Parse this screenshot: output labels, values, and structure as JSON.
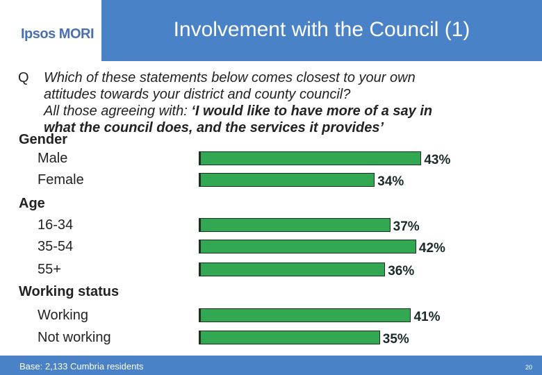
{
  "header": {
    "logo_text": "Ipsos MORI",
    "title": "Involvement with the Council (1)"
  },
  "question": {
    "letter": "Q",
    "line1": "Which of these statements below comes closest to your own",
    "line2": "attitudes towards your district and county council?",
    "line3_prefix": "All those agreeing with: ",
    "line3_bold": "‘I would like to have more of a say in",
    "line4_bold": "what the council does, and the services it provides’"
  },
  "chart_data": {
    "type": "bar",
    "orientation": "horizontal",
    "groups": [
      {
        "label": "Gender",
        "rows": [
          {
            "label": "Male",
            "value": 43,
            "value_label": "43%"
          },
          {
            "label": "Female",
            "value": 34,
            "value_label": "34%"
          }
        ]
      },
      {
        "label": "Age",
        "rows": [
          {
            "label": "16-34",
            "value": 37,
            "value_label": "37%"
          },
          {
            "label": "35-54",
            "value": 42,
            "value_label": "42%"
          },
          {
            "label": "55+",
            "value": 36,
            "value_label": "36%"
          }
        ]
      },
      {
        "label": "Working status",
        "rows": [
          {
            "label": "Working",
            "value": 41,
            "value_label": "41%"
          },
          {
            "label": "Not working",
            "value": 35,
            "value_label": "35%"
          }
        ]
      }
    ],
    "bar_color": "#33a852"
  },
  "footer": {
    "base": "Base: 2,133 Cumbria residents",
    "page": "20"
  },
  "colors": {
    "brand_blue": "#4a82c8",
    "logo_blue": "#4a6fb5"
  }
}
